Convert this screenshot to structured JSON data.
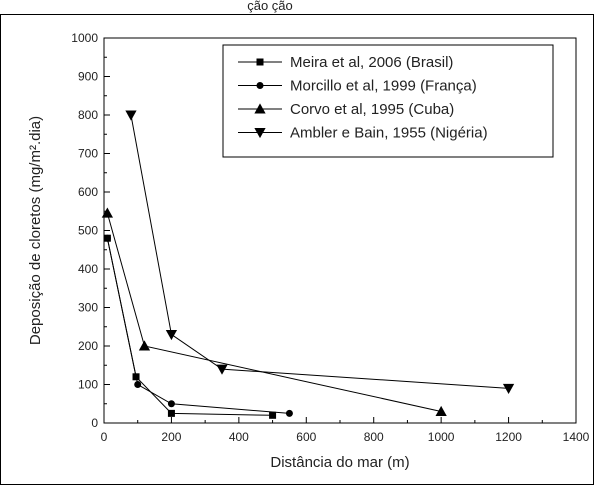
{
  "header_fragment": "ção                              ção",
  "chart_data": {
    "type": "line",
    "title": "",
    "xlabel": "Distância do mar (m)",
    "ylabel": "Deposição de cloretos (mg/m².dia)",
    "xlim": [
      0,
      1400
    ],
    "ylim": [
      0,
      1000
    ],
    "xticks": [
      0,
      200,
      400,
      600,
      800,
      1000,
      1200,
      1400
    ],
    "yticks": [
      0,
      100,
      200,
      300,
      400,
      500,
      600,
      700,
      800,
      900,
      1000
    ],
    "grid": false,
    "legend_position": "top-right",
    "series": [
      {
        "name": "Meira et al, 2006 (Brasil)",
        "marker": "square",
        "x": [
          10,
          95,
          200,
          500
        ],
        "y": [
          480,
          120,
          25,
          20
        ]
      },
      {
        "name": "Morcillo et al, 1999 (França)",
        "marker": "circle",
        "x": [
          10,
          100,
          200,
          550
        ],
        "y": [
          480,
          100,
          50,
          25
        ]
      },
      {
        "name": "Corvo et al, 1995 (Cuba)",
        "marker": "triangle-up",
        "x": [
          10,
          120,
          1000
        ],
        "y": [
          545,
          200,
          30
        ]
      },
      {
        "name": "Ambler e Bain, 1955 (Nigéria)",
        "marker": "triangle-down",
        "x": [
          80,
          200,
          350,
          1200
        ],
        "y": [
          800,
          230,
          140,
          90
        ]
      }
    ]
  }
}
